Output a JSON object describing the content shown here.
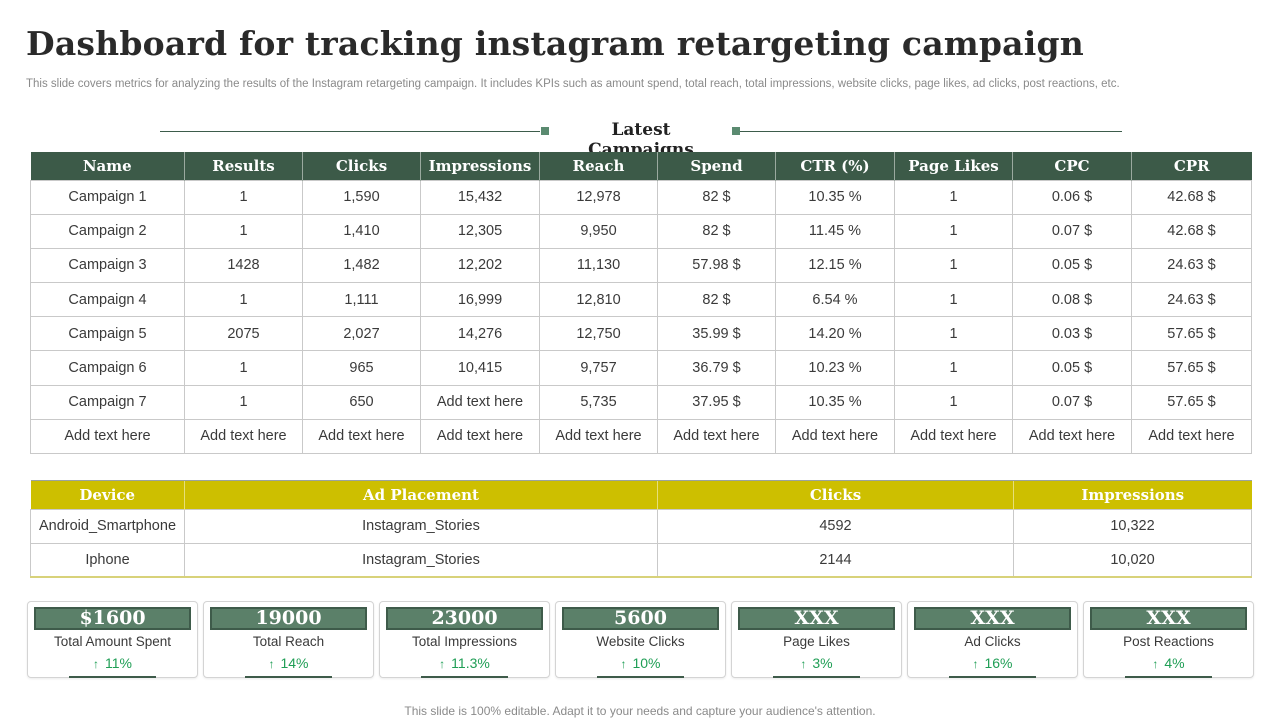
{
  "title": "Dashboard for tracking instagram retargeting campaign",
  "subtitle": "This slide covers metrics for analyzing the results of the Instagram retargeting campaign. It includes KPIs such as amount spend, total reach, total impressions, website clicks, page likes, ad clicks, post reactions, etc.",
  "campaigns_section": {
    "heading": "Latest Campaigns",
    "columns": [
      "Name",
      "Results",
      "Clicks",
      "Impressions",
      "Reach",
      "Spend",
      "CTR (%)",
      "Page Likes",
      "CPC",
      "CPR"
    ],
    "rows": [
      [
        "Campaign 1",
        "1",
        "1,590",
        "15,432",
        "12,978",
        "82 $",
        "10.35 %",
        "1",
        "0.06 $",
        "42.68 $"
      ],
      [
        "Campaign 2",
        "1",
        "1,410",
        "12,305",
        "9,950",
        "82 $",
        "11.45 %",
        "1",
        "0.07 $",
        "42.68 $"
      ],
      [
        "Campaign 3",
        "1428",
        "1,482",
        "12,202",
        "11,130",
        "57.98 $",
        "12.15 %",
        "1",
        "0.05 $",
        "24.63 $"
      ],
      [
        "Campaign 4",
        "1",
        "1,111",
        "16,999",
        "12,810",
        "82 $",
        "6.54 %",
        "1",
        "0.08 $",
        "24.63 $"
      ],
      [
        "Campaign 5",
        "2075",
        "2,027",
        "14,276",
        "12,750",
        "35.99 $",
        "14.20 %",
        "1",
        "0.03 $",
        "57.65 $"
      ],
      [
        "Campaign 6",
        "1",
        "965",
        "10,415",
        "9,757",
        "36.79 $",
        "10.23 %",
        "1",
        "0.05 $",
        "57.65 $"
      ],
      [
        "Campaign 7",
        "1",
        "650",
        "Add text here",
        "5,735",
        "37.95 $",
        "10.35 %",
        "1",
        "0.07 $",
        "57.65 $"
      ],
      [
        "Add text here",
        "Add text here",
        "Add text here",
        "Add text here",
        "Add text here",
        "Add text here",
        "Add text here",
        "Add text here",
        "Add text here",
        "Add text here"
      ]
    ]
  },
  "device_table": {
    "columns": [
      "Device",
      "Ad Placement",
      "Clicks",
      "Impressions"
    ],
    "rows": [
      [
        "Android_Smartphone",
        "Instagram_Stories",
        "4592",
        "10,322"
      ],
      [
        "Iphone",
        "Instagram_Stories",
        "2144",
        "10,020"
      ]
    ]
  },
  "kpis": [
    {
      "value": "$1600",
      "label": "Total Amount Spent",
      "change": "11%",
      "trend": "up"
    },
    {
      "value": "19000",
      "label": "Total Reach",
      "change": "14%",
      "trend": "up"
    },
    {
      "value": "23000",
      "label": "Total Impressions",
      "change": "11.3%",
      "trend": "up"
    },
    {
      "value": "5600",
      "label": "Website Clicks",
      "change": "10%",
      "trend": "up"
    },
    {
      "value": "XXX",
      "label": "Page Likes",
      "change": "3%",
      "trend": "up"
    },
    {
      "value": "XXX",
      "label": "Ad Clicks",
      "change": "16%",
      "trend": "up"
    },
    {
      "value": "XXX",
      "label": "Post Reactions",
      "change": "4%",
      "trend": "up"
    }
  ],
  "colors": {
    "header_green": "#3c5a48",
    "header_yellow": "#cdbf00",
    "kpi_green": "#5b8069",
    "trend_up": "#1f9e55"
  },
  "footer": "This slide is 100% editable. Adapt it to your needs and capture your audience's attention."
}
